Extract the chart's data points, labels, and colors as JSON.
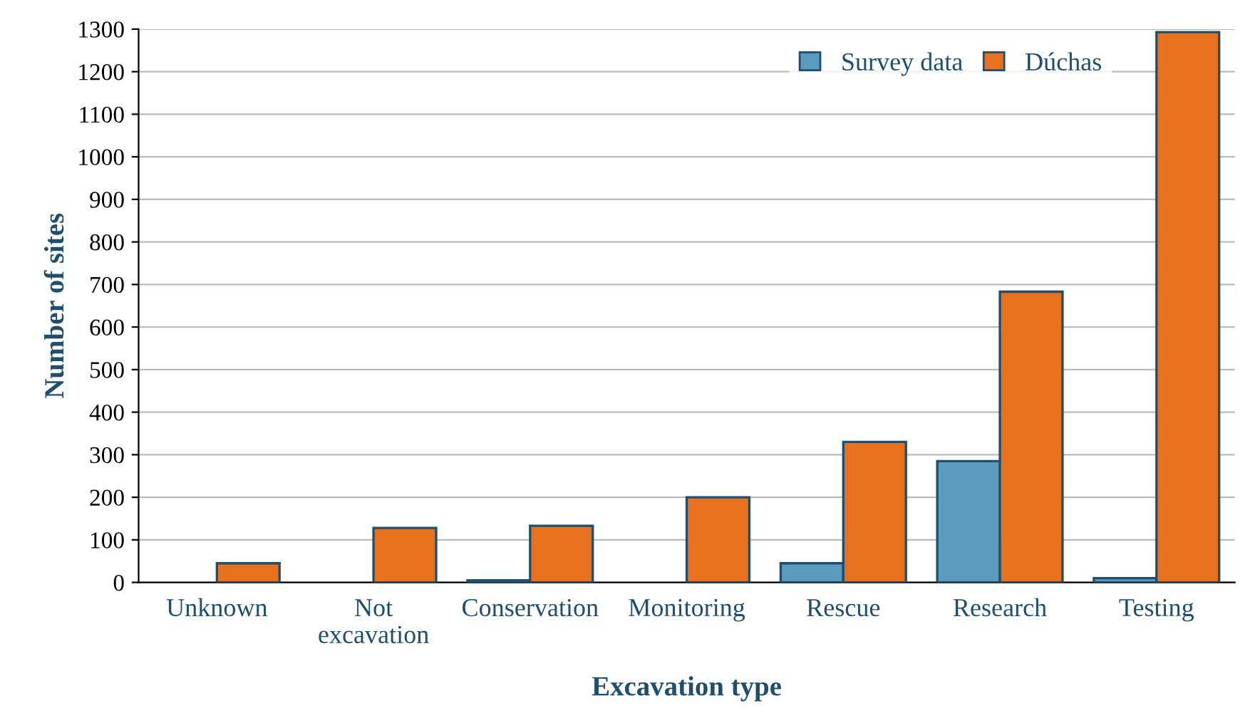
{
  "chart_data": {
    "type": "bar",
    "xlabel": "Excavation type",
    "ylabel": "Number of sites",
    "categories": [
      "Unknown",
      "Not\nexcavation",
      "Conservation",
      "Monitoring",
      "Rescue",
      "Research",
      "Testing"
    ],
    "series": [
      {
        "name": "Survey data",
        "color": "#5b9bbd",
        "values": [
          null,
          null,
          5,
          null,
          45,
          285,
          10
        ]
      },
      {
        "name": "Dúchas",
        "color": "#e8711f",
        "values": [
          45,
          128,
          133,
          200,
          330,
          683,
          1293
        ]
      }
    ],
    "ylim": [
      0,
      1300
    ],
    "yticks": [
      0,
      100,
      200,
      300,
      400,
      500,
      600,
      700,
      800,
      900,
      1000,
      1100,
      1200,
      1300
    ],
    "grid": "y",
    "legend": "top right"
  }
}
